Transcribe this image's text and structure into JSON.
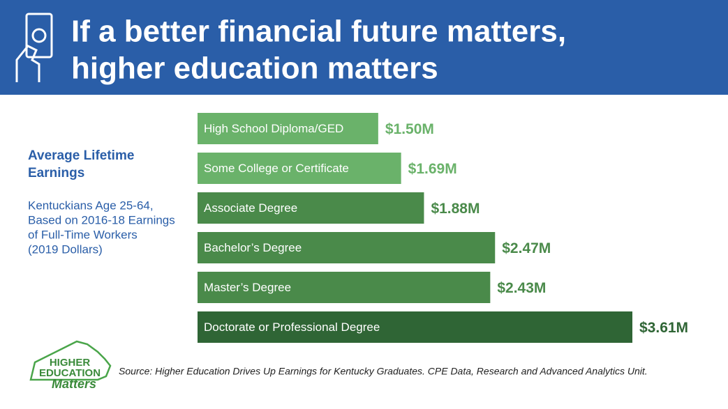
{
  "header": {
    "title": [
      "If a better financial future matters,",
      "higher education matters"
    ]
  },
  "chart_data": {
    "type": "bar",
    "orientation": "horizontal",
    "title": "Average Lifetime Earnings",
    "subtitle": [
      "Kentuckians Age 25-64,",
      "Based on 2016-18 Earnings",
      "of Full-Time Workers",
      "(2019 Dollars)"
    ],
    "categories": [
      "High School Diploma/GED",
      "Some College or Certificate",
      "Associate Degree",
      "Bachelor’s Degree",
      "Master’s Degree",
      "Doctorate or Professional Degree"
    ],
    "values": [
      1.5,
      1.69,
      1.88,
      2.47,
      2.43,
      3.61
    ],
    "value_labels": [
      "$1.50M",
      "$1.69M",
      "$1.88M",
      "$2.47M",
      "$2.43M",
      "$3.61M"
    ],
    "colors": [
      "#6ab26a",
      "#6ab26a",
      "#4a8a4a",
      "#4a8a4a",
      "#4a8a4a",
      "#2f6535"
    ]
  },
  "logo": [
    "HIGHER",
    "EDUCATION",
    "Matters"
  ],
  "source": "Source: Higher Education Drives Up Earnings for Kentucky Graduates. CPE Data, Research and Advanced Analytics Unit."
}
